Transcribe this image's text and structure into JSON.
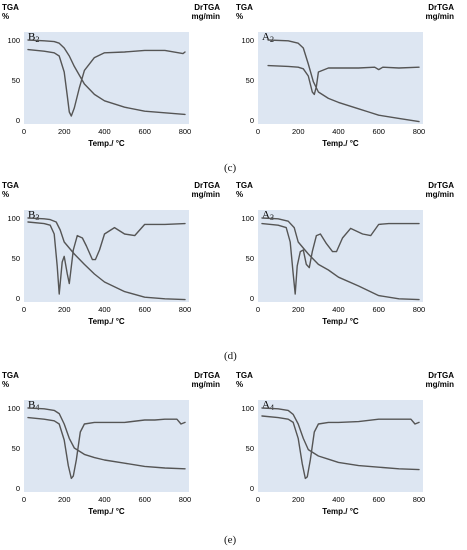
{
  "captions": [
    "(c)",
    "(d)",
    "(e)"
  ],
  "chart_data": [
    {
      "type": "line",
      "label": "B2",
      "label_main": "B",
      "label_sub": "2",
      "y_left_label": [
        "TGA",
        "%"
      ],
      "y_right_label": [
        "DrTGA",
        "mg/min"
      ],
      "xlabel": "Temp./ °C",
      "xticks": [
        0,
        200,
        400,
        600,
        800
      ],
      "yticks": [
        0,
        50,
        100
      ],
      "xlim": [
        0,
        820
      ],
      "ylim": [
        -5,
        110
      ],
      "series": [
        {
          "role": "TGA",
          "x": [
            20,
            100,
            150,
            175,
            200,
            225,
            250,
            300,
            350,
            400,
            500,
            600,
            700,
            800
          ],
          "y": [
            100,
            99,
            98,
            96,
            90,
            80,
            67,
            45,
            32,
            24,
            16,
            11,
            9,
            7
          ]
        },
        {
          "role": "DrTGA",
          "x": [
            20,
            100,
            150,
            175,
            200,
            215,
            225,
            235,
            250,
            275,
            300,
            350,
            400,
            500,
            600,
            700,
            790,
            800
          ],
          "y": [
            88,
            86,
            84,
            80,
            60,
            30,
            10,
            5,
            15,
            40,
            62,
            78,
            84,
            85,
            87,
            87,
            83,
            85
          ]
        }
      ]
    },
    {
      "type": "line",
      "label": "A2",
      "label_main": "A",
      "label_sub": "2",
      "y_left_label": [
        "TGA",
        "%"
      ],
      "y_right_label": [
        "DrTGA",
        "mg/min"
      ],
      "xlabel": "Temp./ °C",
      "xticks": [
        0,
        200,
        400,
        600,
        800
      ],
      "yticks": [
        0,
        50,
        100
      ],
      "xlim": [
        0,
        820
      ],
      "ylim": [
        -5,
        110
      ],
      "series": [
        {
          "role": "TGA",
          "x": [
            50,
            150,
            200,
            225,
            250,
            275,
            300,
            350,
            400,
            500,
            550,
            600,
            700,
            800
          ],
          "y": [
            100,
            99,
            96,
            90,
            70,
            48,
            35,
            27,
            22,
            14,
            10,
            6,
            2,
            -2
          ]
        },
        {
          "role": "DrTGA",
          "x": [
            50,
            150,
            200,
            225,
            250,
            260,
            270,
            280,
            290,
            300,
            350,
            400,
            500,
            580,
            600,
            620,
            700,
            800
          ],
          "y": [
            68,
            67,
            66,
            64,
            55,
            45,
            35,
            32,
            42,
            60,
            65,
            65,
            65,
            66,
            63,
            66,
            65,
            66
          ]
        }
      ]
    },
    {
      "type": "line",
      "label": "B3",
      "label_main": "B",
      "label_sub": "3",
      "y_left_label": [
        "TGA",
        "%"
      ],
      "y_right_label": [
        "DrTGA",
        "mg/min"
      ],
      "xlabel": "Temp./ °C",
      "xticks": [
        0,
        200,
        400,
        600,
        800
      ],
      "yticks": [
        0,
        50,
        100
      ],
      "xlim": [
        0,
        820
      ],
      "ylim": [
        -5,
        110
      ],
      "series": [
        {
          "role": "TGA",
          "x": [
            20,
            100,
            130,
            160,
            180,
            200,
            250,
            300,
            350,
            400,
            500,
            600,
            700,
            800
          ],
          "y": [
            100,
            99,
            98,
            95,
            85,
            70,
            55,
            42,
            30,
            20,
            8,
            1,
            -1,
            -2
          ]
        },
        {
          "role": "DrTGA",
          "x": [
            20,
            100,
            130,
            150,
            165,
            175,
            190,
            200,
            215,
            225,
            245,
            265,
            290,
            310,
            340,
            355,
            375,
            400,
            450,
            500,
            550,
            600,
            700,
            800
          ],
          "y": [
            95,
            93,
            91,
            80,
            40,
            5,
            45,
            52,
            30,
            18,
            60,
            78,
            75,
            65,
            48,
            48,
            60,
            80,
            88,
            80,
            78,
            92,
            92,
            93
          ]
        }
      ]
    },
    {
      "type": "line",
      "label": "A3",
      "label_main": "A",
      "label_sub": "3",
      "y_left_label": [
        "TGA",
        "%"
      ],
      "y_right_label": [
        "DrTGA",
        "mg/min"
      ],
      "xlabel": "Temp./ °C",
      "xticks": [
        0,
        200,
        400,
        600,
        800
      ],
      "yticks": [
        0,
        50,
        100
      ],
      "xlim": [
        0,
        820
      ],
      "ylim": [
        -5,
        110
      ],
      "series": [
        {
          "role": "TGA",
          "x": [
            20,
            100,
            150,
            180,
            200,
            250,
            300,
            350,
            400,
            500,
            600,
            700,
            800
          ],
          "y": [
            100,
            99,
            96,
            88,
            70,
            55,
            42,
            35,
            26,
            15,
            3,
            -1,
            -2
          ]
        },
        {
          "role": "DrTGA",
          "x": [
            20,
            100,
            140,
            160,
            175,
            185,
            195,
            210,
            225,
            240,
            255,
            270,
            290,
            310,
            340,
            370,
            390,
            420,
            460,
            520,
            560,
            600,
            650,
            700,
            800
          ],
          "y": [
            93,
            91,
            88,
            70,
            30,
            5,
            40,
            58,
            60,
            42,
            38,
            58,
            78,
            80,
            68,
            58,
            58,
            75,
            87,
            80,
            78,
            92,
            93,
            93,
            93
          ]
        }
      ]
    },
    {
      "type": "line",
      "label": "B4",
      "label_main": "B",
      "label_sub": "4",
      "y_left_label": [
        "TGA",
        "%"
      ],
      "y_right_label": [
        "DrTGA",
        "mg/min"
      ],
      "xlabel": "Temp./ °C",
      "xticks": [
        0,
        200,
        400,
        600,
        800
      ],
      "yticks": [
        0,
        50,
        100
      ],
      "xlim": [
        0,
        820
      ],
      "ylim": [
        -5,
        110
      ],
      "series": [
        {
          "role": "TGA",
          "x": [
            20,
            100,
            150,
            175,
            200,
            225,
            250,
            300,
            350,
            400,
            500,
            600,
            700,
            800
          ],
          "y": [
            100,
            99,
            97,
            93,
            80,
            62,
            50,
            42,
            38,
            35,
            31,
            27,
            25,
            24
          ]
        },
        {
          "role": "DrTGA",
          "x": [
            20,
            100,
            150,
            175,
            200,
            220,
            235,
            245,
            260,
            280,
            300,
            350,
            400,
            500,
            600,
            650,
            700,
            760,
            780,
            800
          ],
          "y": [
            88,
            86,
            84,
            80,
            60,
            28,
            12,
            15,
            35,
            70,
            80,
            82,
            82,
            82,
            85,
            85,
            86,
            86,
            80,
            82
          ]
        }
      ]
    },
    {
      "type": "line",
      "label": "A4",
      "label_main": "A",
      "label_sub": "4",
      "y_left_label": [
        "TGA",
        "%"
      ],
      "y_right_label": [
        "DrTGA",
        "mg/min"
      ],
      "xlabel": "Temp./ °C",
      "xticks": [
        0,
        200,
        400,
        600,
        800
      ],
      "yticks": [
        0,
        50,
        100
      ],
      "xlim": [
        0,
        820
      ],
      "ylim": [
        -5,
        110
      ],
      "series": [
        {
          "role": "TGA",
          "x": [
            20,
            100,
            150,
            175,
            200,
            225,
            250,
            300,
            350,
            400,
            500,
            600,
            700,
            800
          ],
          "y": [
            100,
            99,
            97,
            92,
            80,
            62,
            48,
            40,
            36,
            32,
            28,
            26,
            24,
            23
          ]
        },
        {
          "role": "DrTGA",
          "x": [
            20,
            100,
            150,
            175,
            200,
            220,
            235,
            245,
            260,
            280,
            300,
            350,
            400,
            500,
            600,
            650,
            700,
            760,
            780,
            800
          ],
          "y": [
            90,
            88,
            86,
            82,
            62,
            30,
            12,
            14,
            35,
            70,
            80,
            82,
            82,
            83,
            86,
            86,
            86,
            86,
            80,
            82
          ]
        }
      ]
    }
  ]
}
